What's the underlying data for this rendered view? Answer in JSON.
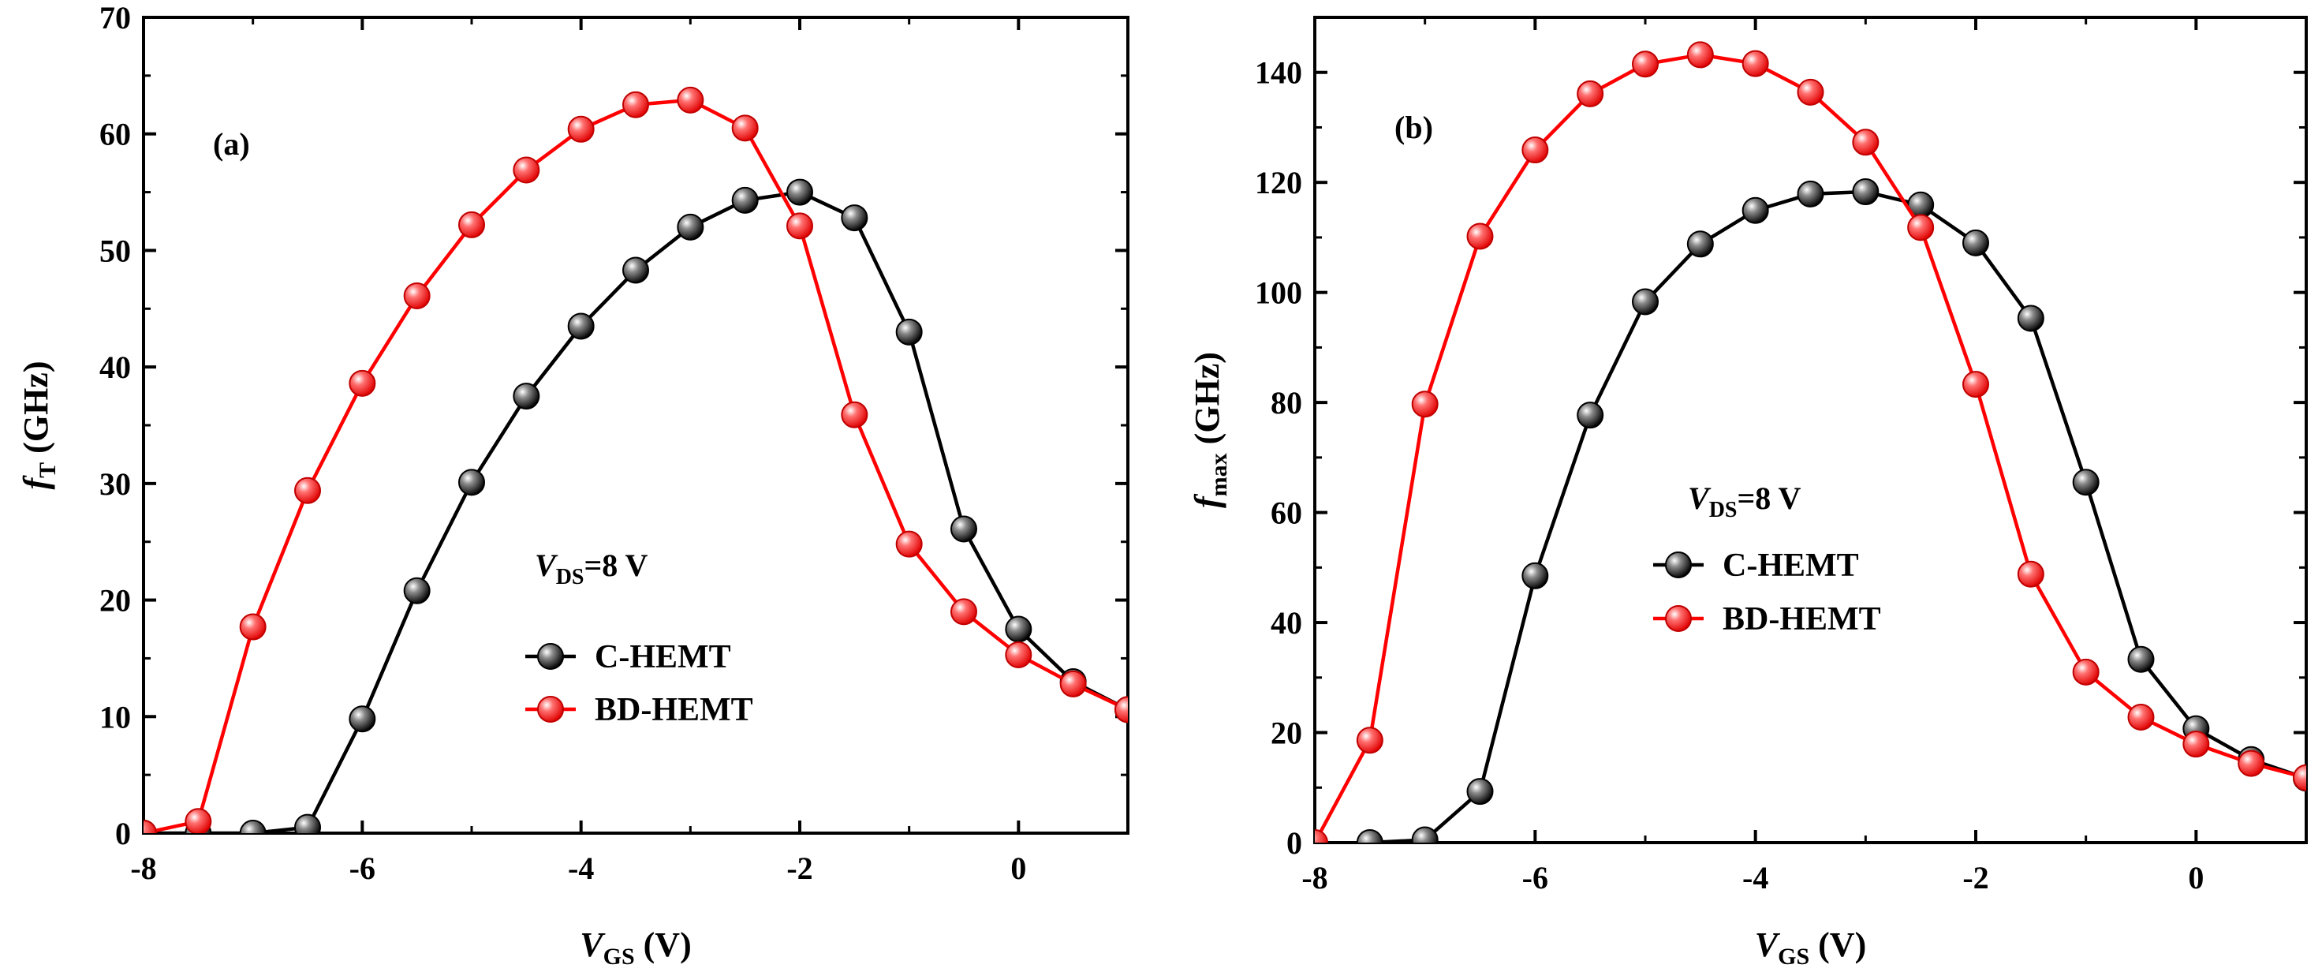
{
  "chart_data": [
    {
      "type": "line",
      "panel_label": "(a)",
      "xlabel": {
        "main": "V",
        "sub": "GS",
        "unit": " (V)"
      },
      "ylabel": {
        "main": "f",
        "sub": "T",
        "unit": " (GHz)"
      },
      "xlim": [
        -8,
        1
      ],
      "ylim": [
        0,
        70
      ],
      "xticks": [
        -8,
        -6,
        -4,
        -2,
        0
      ],
      "yticks": [
        0,
        10,
        20,
        30,
        40,
        50,
        60,
        70
      ],
      "grid": false,
      "annotation": {
        "main": "V",
        "sub": "DS",
        "rest": "=8 V"
      },
      "legend_position": "lower-center",
      "series": [
        {
          "name": "C-HEMT",
          "color": "#000000",
          "x": [
            -8,
            -7.5,
            -7,
            -6.5,
            -6,
            -5.5,
            -5,
            -4.5,
            -4,
            -3.5,
            -3,
            -2.5,
            -2,
            -1.5,
            -1,
            -0.5,
            0,
            0.5,
            1
          ],
          "y": [
            0,
            0,
            0,
            0.5,
            9.8,
            20.8,
            30.1,
            37.5,
            43.5,
            48.3,
            52.0,
            54.3,
            55.0,
            52.8,
            43.0,
            26.1,
            17.5,
            13.0,
            10.6
          ]
        },
        {
          "name": "BD-HEMT",
          "color": "#ff0000",
          "x": [
            -8,
            -7.5,
            -7,
            -6.5,
            -6,
            -5.5,
            -5,
            -4.5,
            -4,
            -3.5,
            -3,
            -2.5,
            -2,
            -1.5,
            -1,
            -0.5,
            0,
            0.5,
            1
          ],
          "y": [
            0,
            1.0,
            17.7,
            29.4,
            38.6,
            46.1,
            52.2,
            56.9,
            60.4,
            62.5,
            62.9,
            60.5,
            52.1,
            35.9,
            24.8,
            19.0,
            15.3,
            12.8,
            10.6
          ]
        }
      ]
    },
    {
      "type": "line",
      "panel_label": "(b)",
      "xlabel": {
        "main": "V",
        "sub": "GS",
        "unit": " (V)"
      },
      "ylabel": {
        "main": "f",
        "sub": "max",
        "unit": " (GHz)"
      },
      "xlim": [
        -8,
        1
      ],
      "ylim": [
        0,
        150
      ],
      "xticks": [
        -8,
        -6,
        -4,
        -2,
        0
      ],
      "yticks": [
        0,
        20,
        40,
        60,
        80,
        100,
        120,
        140
      ],
      "grid": false,
      "annotation": {
        "main": "V",
        "sub": "DS",
        "rest": "=8 V"
      },
      "legend_position": "center",
      "series": [
        {
          "name": "C-HEMT",
          "color": "#000000",
          "x": [
            -7.5,
            -7,
            -6.5,
            -6,
            -5.5,
            -5,
            -4.5,
            -4,
            -3.5,
            -3,
            -2.5,
            -2,
            -1.5,
            -1,
            -0.5,
            0,
            0.5,
            1
          ],
          "y": [
            0,
            0.5,
            9.3,
            48.5,
            77.7,
            98.3,
            108.8,
            114.9,
            117.9,
            118.3,
            115.9,
            109.0,
            95.3,
            65.5,
            33.3,
            20.7,
            15.1,
            11.7
          ]
        },
        {
          "name": "BD-HEMT",
          "color": "#ff0000",
          "x": [
            -8,
            -7.5,
            -7,
            -6.5,
            -6,
            -5.5,
            -5,
            -4.5,
            -4,
            -3.5,
            -3,
            -2.5,
            -2,
            -1.5,
            -1,
            -0.5,
            0,
            0.5,
            1
          ],
          "y": [
            0,
            18.6,
            79.7,
            110.2,
            125.9,
            136.1,
            141.5,
            143.2,
            141.6,
            136.4,
            127.3,
            111.8,
            83.3,
            48.8,
            31.0,
            22.8,
            17.9,
            14.4,
            11.8
          ]
        }
      ]
    }
  ]
}
